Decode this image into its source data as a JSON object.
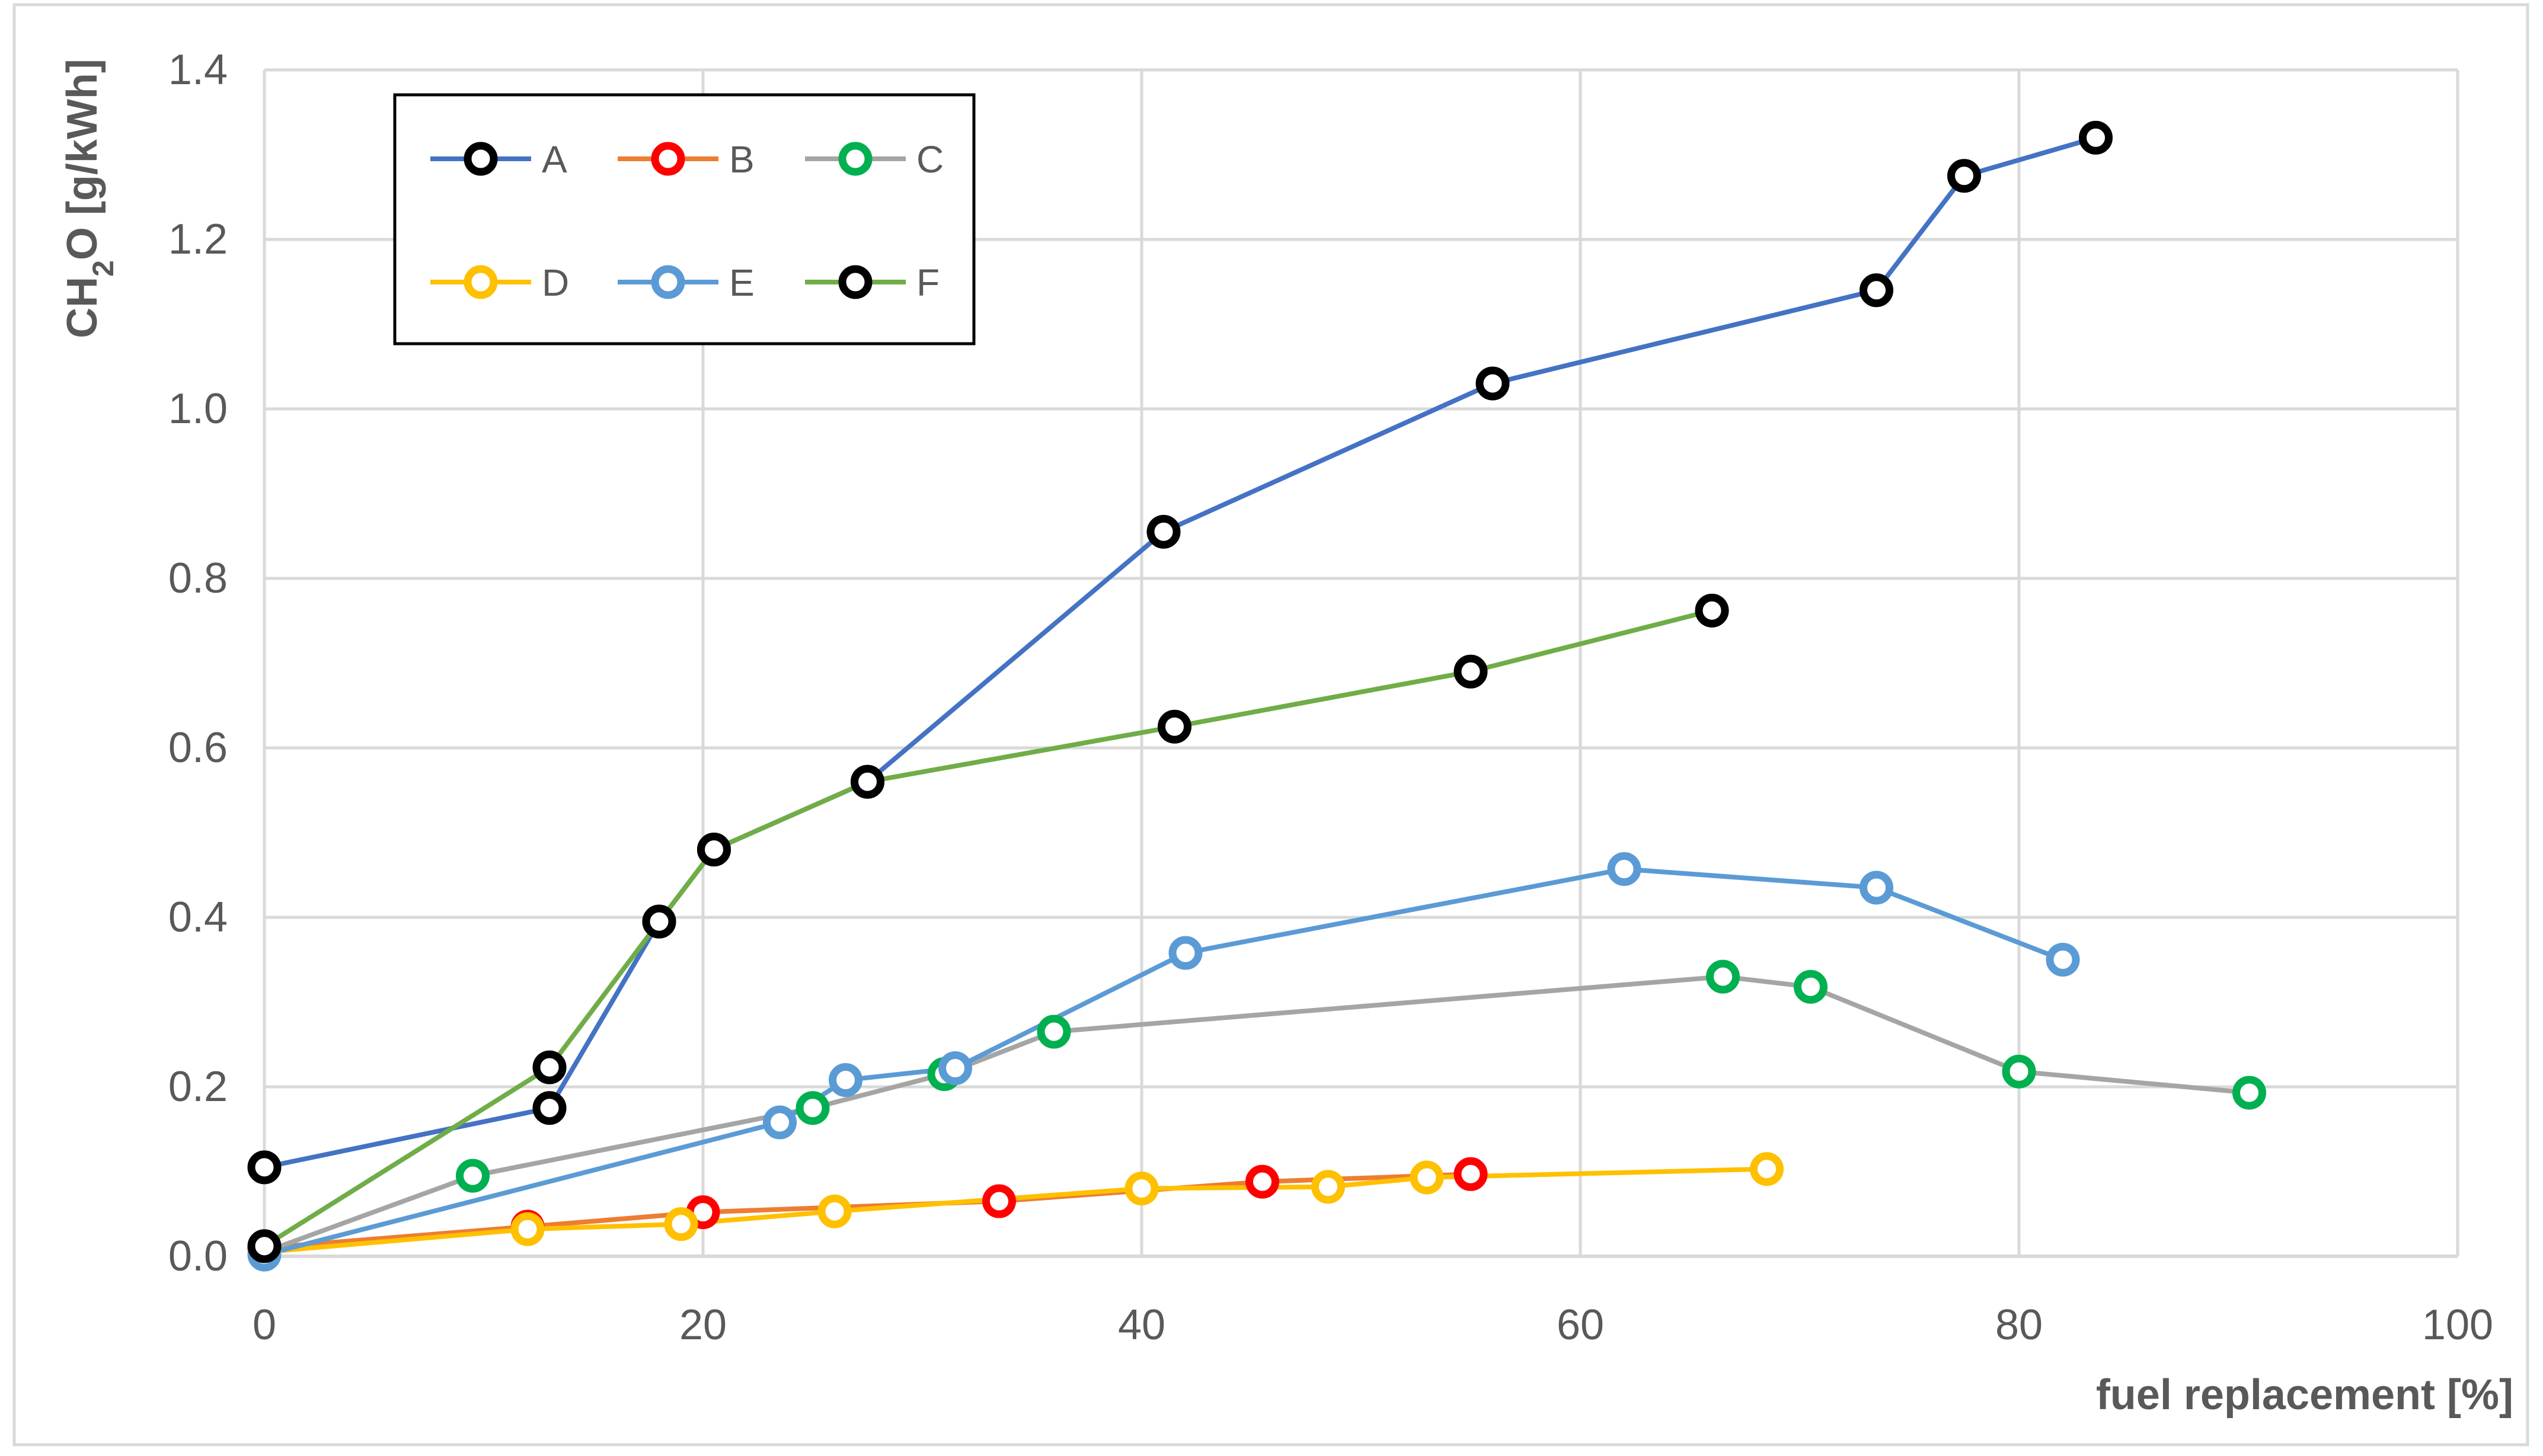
{
  "chart_data": {
    "type": "line",
    "title": "",
    "xlabel": "fuel replacement [%]",
    "ylabel": "CH2O [g/kWh]",
    "ylabel_parts": {
      "pre": "CH",
      "sub": "2",
      "post": "O [g/kWh]"
    },
    "xlim": [
      0,
      100
    ],
    "ylim": [
      0,
      1.4
    ],
    "xticks": [
      0,
      20,
      40,
      60,
      80,
      100
    ],
    "yticks": [
      0.0,
      0.2,
      0.4,
      0.6,
      0.8,
      1.0,
      1.2,
      1.4
    ],
    "ytick_labels": [
      "0.0",
      "0.2",
      "0.4",
      "0.6",
      "0.8",
      "1.0",
      "1.2",
      "1.4"
    ],
    "grid": true,
    "legend_position": "top-left",
    "series": [
      {
        "name": "A",
        "line_color": "#4472C4",
        "marker_color": "#000000",
        "x": [
          0,
          13,
          18,
          20.5,
          27.5,
          41,
          56,
          73.5,
          77.5,
          83.5
        ],
        "y": [
          0.105,
          0.175,
          0.395,
          0.48,
          0.56,
          0.855,
          1.03,
          1.14,
          1.275,
          1.32
        ]
      },
      {
        "name": "B",
        "line_color": "#ED7D31",
        "marker_color": "#FF0000",
        "x": [
          0,
          12,
          20,
          33.5,
          45.5,
          55
        ],
        "y": [
          0.01,
          0.035,
          0.052,
          0.065,
          0.088,
          0.097
        ]
      },
      {
        "name": "C",
        "line_color": "#A5A5A5",
        "marker_color": "#00B050",
        "x": [
          0,
          9.5,
          25,
          31,
          36,
          66.5,
          70.5,
          80,
          90.5
        ],
        "y": [
          0.005,
          0.095,
          0.175,
          0.215,
          0.265,
          0.33,
          0.318,
          0.218,
          0.193
        ]
      },
      {
        "name": "D",
        "line_color": "#FFC000",
        "marker_color": "#FFC000",
        "x": [
          0,
          12,
          19,
          26,
          40,
          48.5,
          53,
          68.5
        ],
        "y": [
          0.005,
          0.032,
          0.038,
          0.053,
          0.08,
          0.082,
          0.093,
          0.103
        ]
      },
      {
        "name": "E",
        "line_color": "#5B9BD5",
        "marker_color": "#5B9BD5",
        "x": [
          0,
          23.5,
          26.5,
          31.5,
          42,
          62,
          73.5,
          82
        ],
        "y": [
          0.002,
          0.158,
          0.208,
          0.222,
          0.358,
          0.457,
          0.435,
          0.35
        ]
      },
      {
        "name": "F",
        "line_color": "#70AD47",
        "marker_color": "#000000",
        "x": [
          0,
          13,
          18,
          20.5,
          27.5,
          41.5,
          55,
          66
        ],
        "y": [
          0.012,
          0.223,
          0.395,
          0.48,
          0.56,
          0.625,
          0.69,
          0.762
        ]
      }
    ]
  }
}
